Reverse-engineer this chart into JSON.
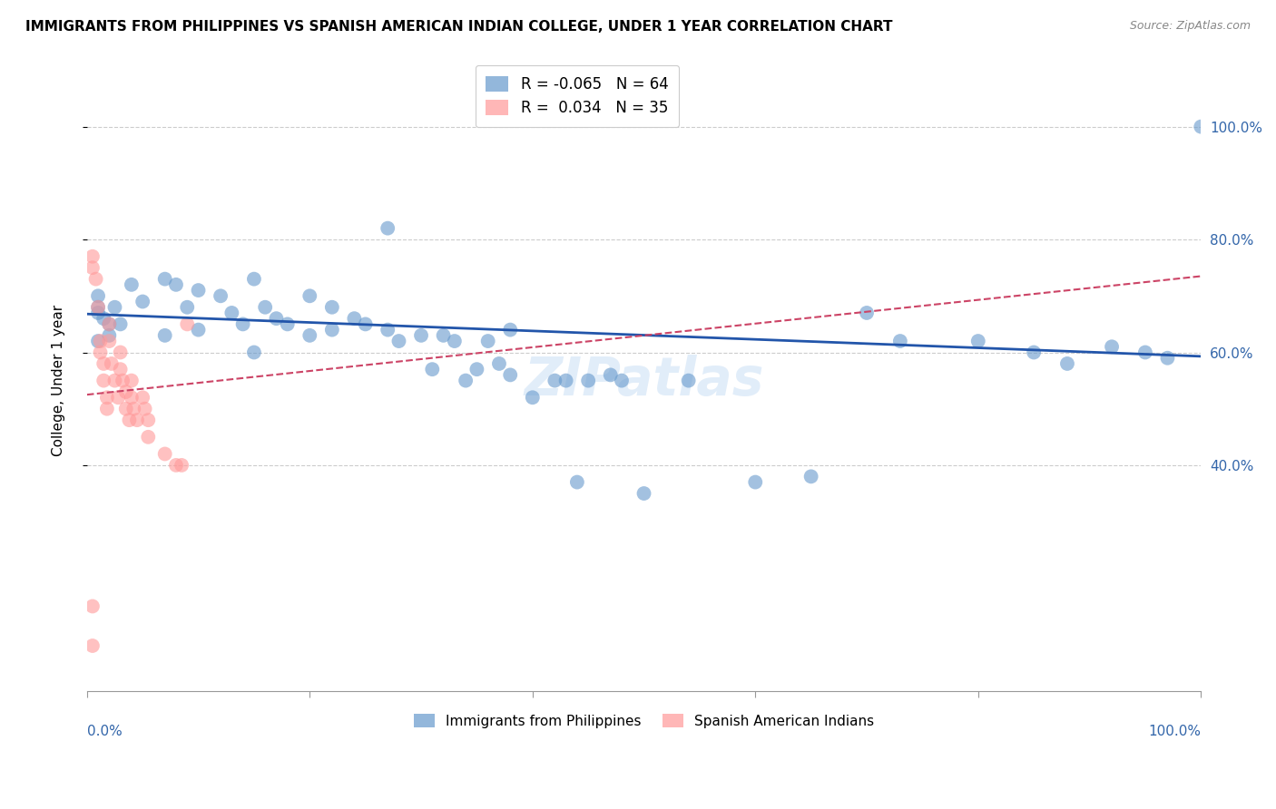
{
  "title": "IMMIGRANTS FROM PHILIPPINES VS SPANISH AMERICAN INDIAN COLLEGE, UNDER 1 YEAR CORRELATION CHART",
  "source": "Source: ZipAtlas.com",
  "ylabel": "College, Under 1 year",
  "legend_blue_r": "-0.065",
  "legend_blue_n": "64",
  "legend_pink_r": "0.034",
  "legend_pink_n": "35",
  "legend_label_blue": "Immigrants from Philippines",
  "legend_label_pink": "Spanish American Indians",
  "blue_color": "#6699CC",
  "pink_color": "#FF9999",
  "blue_line_color": "#2255AA",
  "pink_line_color": "#CC4466",
  "background_color": "#FFFFFF",
  "grid_color": "#CCCCCC",
  "blue_scatter_x": [
    0.02,
    0.01,
    0.01,
    0.015,
    0.01,
    0.01,
    0.02,
    0.025,
    0.03,
    0.04,
    0.05,
    0.07,
    0.08,
    0.07,
    0.09,
    0.1,
    0.1,
    0.12,
    0.13,
    0.14,
    0.15,
    0.15,
    0.16,
    0.17,
    0.18,
    0.2,
    0.2,
    0.22,
    0.22,
    0.24,
    0.25,
    0.27,
    0.27,
    0.28,
    0.3,
    0.31,
    0.32,
    0.33,
    0.34,
    0.35,
    0.36,
    0.37,
    0.38,
    0.38,
    0.4,
    0.42,
    0.43,
    0.44,
    0.45,
    0.47,
    0.48,
    0.5,
    0.54,
    0.6,
    0.65,
    0.7,
    0.73,
    0.8,
    0.85,
    0.88,
    0.92,
    0.95,
    0.97,
    1.0
  ],
  "blue_scatter_y": [
    0.65,
    0.68,
    0.62,
    0.66,
    0.7,
    0.67,
    0.63,
    0.68,
    0.65,
    0.72,
    0.69,
    0.73,
    0.72,
    0.63,
    0.68,
    0.71,
    0.64,
    0.7,
    0.67,
    0.65,
    0.73,
    0.6,
    0.68,
    0.66,
    0.65,
    0.7,
    0.63,
    0.64,
    0.68,
    0.66,
    0.65,
    0.82,
    0.64,
    0.62,
    0.63,
    0.57,
    0.63,
    0.62,
    0.55,
    0.57,
    0.62,
    0.58,
    0.64,
    0.56,
    0.52,
    0.55,
    0.55,
    0.37,
    0.55,
    0.56,
    0.55,
    0.35,
    0.55,
    0.37,
    0.38,
    0.67,
    0.62,
    0.62,
    0.6,
    0.58,
    0.61,
    0.6,
    0.59,
    1.0
  ],
  "pink_scatter_x": [
    0.005,
    0.005,
    0.008,
    0.01,
    0.012,
    0.012,
    0.015,
    0.015,
    0.018,
    0.018,
    0.02,
    0.02,
    0.022,
    0.025,
    0.028,
    0.03,
    0.03,
    0.032,
    0.035,
    0.035,
    0.038,
    0.04,
    0.04,
    0.042,
    0.045,
    0.05,
    0.052,
    0.055,
    0.055,
    0.07,
    0.08,
    0.085,
    0.09,
    0.005,
    0.005
  ],
  "pink_scatter_y": [
    0.75,
    0.77,
    0.73,
    0.68,
    0.62,
    0.6,
    0.58,
    0.55,
    0.52,
    0.5,
    0.65,
    0.62,
    0.58,
    0.55,
    0.52,
    0.6,
    0.57,
    0.55,
    0.53,
    0.5,
    0.48,
    0.55,
    0.52,
    0.5,
    0.48,
    0.52,
    0.5,
    0.48,
    0.45,
    0.42,
    0.4,
    0.4,
    0.65,
    0.15,
    0.08
  ],
  "blue_trend_y_start": 0.668,
  "blue_trend_y_end": 0.593,
  "pink_trend_y_start": 0.525,
  "pink_trend_y_end": 0.735,
  "xlim": [
    0.0,
    1.0
  ],
  "ylim": [
    0.0,
    1.1
  ],
  "ytick_positions": [
    0.4,
    0.6,
    0.8,
    1.0
  ],
  "ytick_labels": [
    "40.0%",
    "60.0%",
    "80.0%",
    "100.0%"
  ],
  "xtick_positions": [
    0.0,
    0.2,
    0.4,
    0.6,
    0.8,
    1.0
  ],
  "title_fontsize": 11,
  "axis_label_fontsize": 11,
  "tick_fontsize": 11,
  "source_fontsize": 9,
  "watermark_text": "ZIPatlas",
  "watermark_color": "#AACCEE",
  "watermark_alpha": 0.35,
  "watermark_fontsize": 42
}
